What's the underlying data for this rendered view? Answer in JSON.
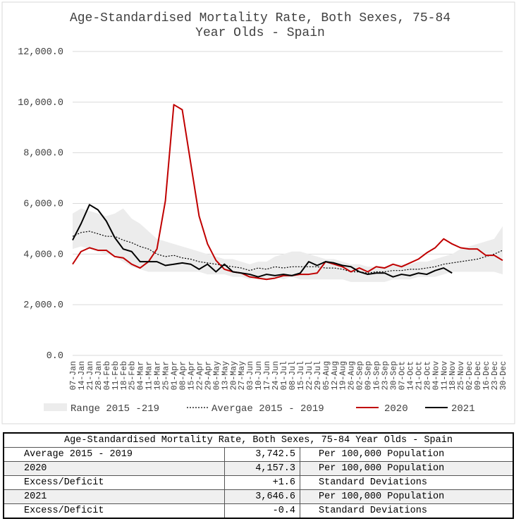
{
  "chart_data": {
    "type": "line",
    "title": "Age-Standardised Mortality Rate, Both Sexes, 75-84 Year Olds - Spain",
    "categories": [
      "07-Jan",
      "14-Jan",
      "21-Jan",
      "28-Jan",
      "04-Feb",
      "11-Feb",
      "18-Feb",
      "25-Feb",
      "04-Mar",
      "11-Mar",
      "18-Mar",
      "25-Mar",
      "01-Apr",
      "08-Apr",
      "15-Apr",
      "22-Apr",
      "29-Apr",
      "06-May",
      "13-May",
      "20-May",
      "27-May",
      "03-Jun",
      "10-Jun",
      "17-Jun",
      "24-Jun",
      "01-Jul",
      "08-Jul",
      "15-Jul",
      "22-Jul",
      "29-Jul",
      "05-Aug",
      "12-Aug",
      "19-Aug",
      "26-Aug",
      "02-Sep",
      "09-Sep",
      "16-Sep",
      "23-Sep",
      "30-Sep",
      "07-Oct",
      "14-Oct",
      "21-Oct",
      "28-Oct",
      "04-Nov",
      "11-Nov",
      "18-Nov",
      "25-Nov",
      "02-Dec",
      "09-Dec",
      "16-Dec",
      "23-Dec",
      "30-Dec"
    ],
    "ylim": [
      0,
      12000
    ],
    "yticks": [
      {
        "value": 0,
        "label": "0.0"
      },
      {
        "value": 2000,
        "label": "2,000.0"
      },
      {
        "value": 4000,
        "label": "4,000.0"
      },
      {
        "value": 6000,
        "label": "6,000.0"
      },
      {
        "value": 8000,
        "label": "8,000.0"
      },
      {
        "value": 10000,
        "label": "10,000.0"
      },
      {
        "value": 12000,
        "label": "12,000.0"
      }
    ],
    "grid": true,
    "legend": "bottom",
    "band": {
      "name": "Range 2015 -219",
      "color": "#ececec",
      "high": [
        5600,
        5800,
        5700,
        5600,
        5500,
        5600,
        5800,
        5400,
        5200,
        4900,
        4600,
        4500,
        4400,
        4300,
        4200,
        4100,
        4000,
        3900,
        3800,
        3800,
        3700,
        3600,
        3700,
        3700,
        3900,
        4000,
        4100,
        4100,
        4000,
        3900,
        3800,
        3800,
        3700,
        3600,
        3600,
        3500,
        3500,
        3500,
        3600,
        3600,
        3600,
        3700,
        3700,
        3800,
        3900,
        4000,
        4200,
        4300,
        4400,
        4500,
        4600,
        5100
      ],
      "low": [
        4200,
        4300,
        4200,
        4100,
        4000,
        3900,
        3700,
        3500,
        3400,
        3300,
        3300,
        3300,
        3300,
        3300,
        3300,
        3300,
        3200,
        3200,
        3200,
        3100,
        3100,
        3000,
        3100,
        3000,
        3100,
        3000,
        3100,
        3000,
        3000,
        3000,
        3000,
        3000,
        3000,
        2900,
        2900,
        2900,
        2900,
        2900,
        3000,
        3000,
        3000,
        3100,
        3100,
        3100,
        3200,
        3300,
        3300,
        3300,
        3300,
        3300,
        3300,
        3200
      ]
    },
    "series": [
      {
        "name": "Avergae 2015 - 2019",
        "color": "#000000",
        "dash": true,
        "values": [
          4700,
          4850,
          4900,
          4800,
          4700,
          4700,
          4550,
          4450,
          4300,
          4200,
          4000,
          3900,
          3950,
          3850,
          3800,
          3700,
          3650,
          3600,
          3550,
          3500,
          3450,
          3350,
          3450,
          3400,
          3500,
          3450,
          3500,
          3500,
          3500,
          3500,
          3450,
          3450,
          3400,
          3300,
          3300,
          3250,
          3300,
          3300,
          3350,
          3350,
          3400,
          3400,
          3450,
          3500,
          3600,
          3650,
          3700,
          3750,
          3800,
          3900,
          4000,
          4150
        ]
      },
      {
        "name": "2020",
        "color": "#c00000",
        "values": [
          3600,
          4100,
          4250,
          4150,
          4150,
          3900,
          3850,
          3600,
          3450,
          3700,
          4200,
          6100,
          9900,
          9700,
          7600,
          5500,
          4400,
          3750,
          3400,
          3300,
          3250,
          3100,
          3050,
          3000,
          3050,
          3150,
          3150,
          3200,
          3200,
          3250,
          3700,
          3600,
          3500,
          3300,
          3450,
          3300,
          3500,
          3450,
          3600,
          3500,
          3650,
          3800,
          4050,
          4250,
          4600,
          4400,
          4250,
          4200,
          4200,
          3950,
          3950,
          3750
        ]
      },
      {
        "name": "2021",
        "color": "#000000",
        "values": [
          4550,
          5200,
          5950,
          5750,
          5300,
          4650,
          4200,
          4100,
          3700,
          3700,
          3700,
          3550,
          3600,
          3650,
          3600,
          3400,
          3600,
          3300,
          3600,
          3300,
          3250,
          3200,
          3100,
          3200,
          3150,
          3200,
          3150,
          3250,
          3700,
          3550,
          3700,
          3650,
          3550,
          3500,
          3300,
          3200,
          3250,
          3250,
          3100,
          3200,
          3150,
          3250,
          3200,
          3350,
          3450,
          3250,
          null,
          null,
          null,
          null,
          null,
          null
        ]
      }
    ]
  },
  "table": {
    "title": "Age-Standardised Mortality Rate, Both Sexes, 75-84 Year Olds - Spain",
    "rows": [
      [
        "Average 2015 - 2019",
        "3,742.5",
        "Per 100,000 Population"
      ],
      [
        "2020",
        "4,157.3",
        "Per 100,000 Population"
      ],
      [
        "Excess/Deficit",
        "+1.6",
        "Standard Deviations"
      ],
      [
        "2021",
        "3,646.6",
        "Per 100,000 Population"
      ],
      [
        "Excess/Deficit",
        "-0.4",
        "Standard Deviations"
      ]
    ]
  }
}
